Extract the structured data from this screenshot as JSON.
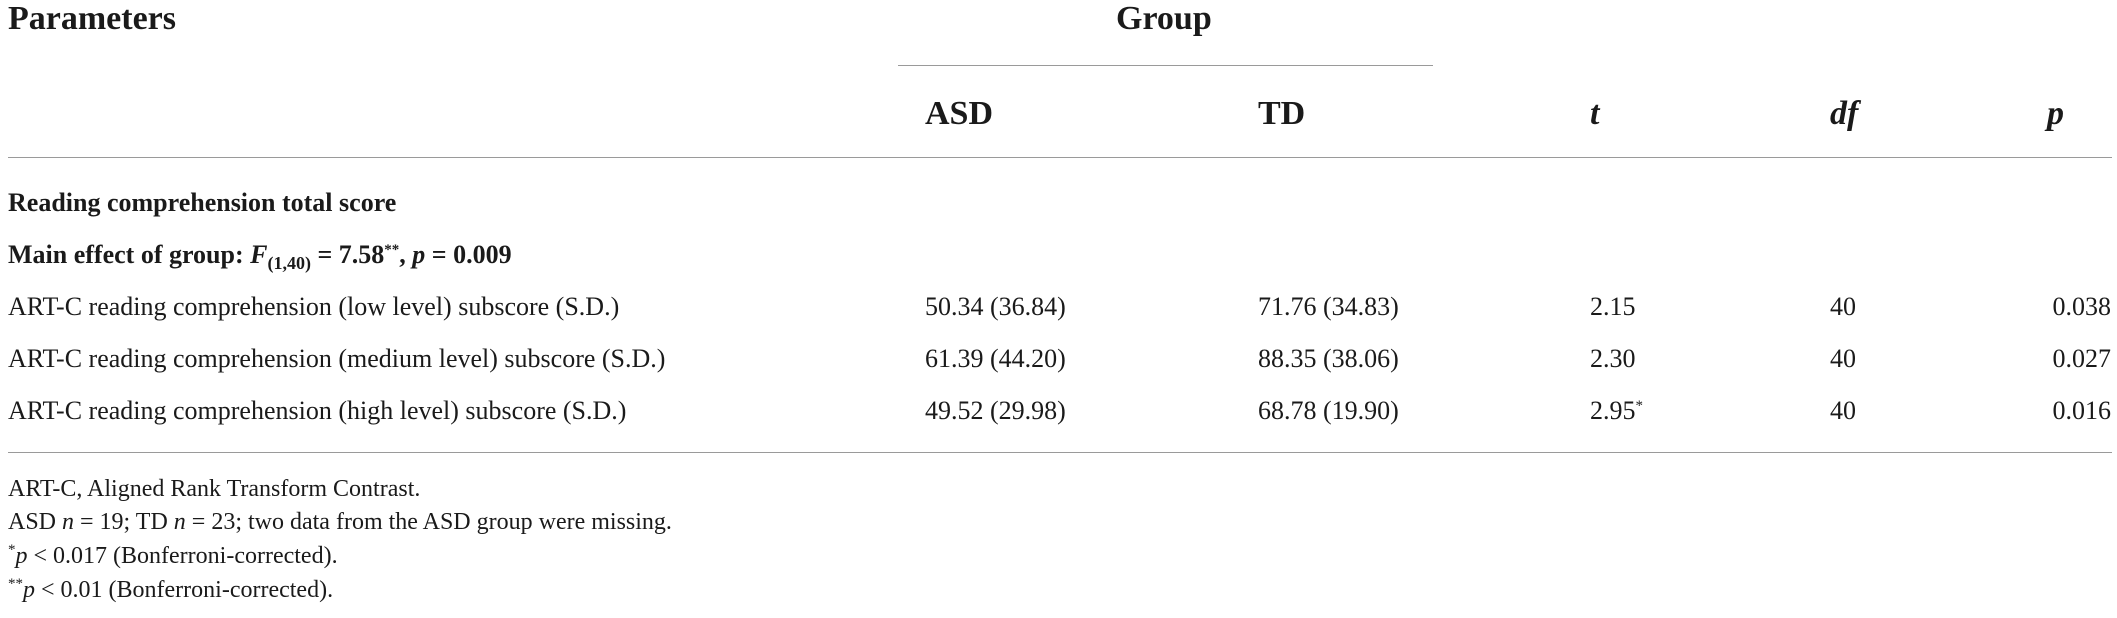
{
  "table": {
    "headers": {
      "parameters": "Parameters",
      "group": "Group",
      "asd": "ASD",
      "td": "TD",
      "t": "t",
      "df": "df",
      "p": "p"
    },
    "section_title": "Reading comprehension total score",
    "main_effect": {
      "label": "Main effect of group: ",
      "f": "F",
      "f_sub": "(1,40)",
      "f_value": " = 7.58",
      "f_stars": "**",
      "sep": ", ",
      "p": "p",
      "p_value": " = 0.009"
    },
    "rows": [
      {
        "param": "ART-C reading comprehension (low level) subscore (S.D.)",
        "asd": "50.34 (36.84)",
        "td": "71.76 (34.83)",
        "t": "2.15",
        "t_mark": "",
        "df": "40",
        "p": "0.038"
      },
      {
        "param": "ART-C reading comprehension (medium level) subscore (S.D.)",
        "asd": "61.39 (44.20)",
        "td": "88.35 (38.06)",
        "t": "2.30",
        "t_mark": "",
        "df": "40",
        "p": "0.027"
      },
      {
        "param": "ART-C reading comprehension (high level) subscore (S.D.)",
        "asd": "49.52 (29.98)",
        "td": "68.78 (19.90)",
        "t": "2.95",
        "t_mark": "*",
        "df": "40",
        "p": "0.016"
      }
    ]
  },
  "footnotes": {
    "abbrev": "ART-C, Aligned Rank Transform Contrast.",
    "sample_a": "ASD ",
    "sample_n1": "n",
    "sample_b": " = 19; TD ",
    "sample_n2": "n",
    "sample_c": " = 23; two data from the ASD group were missing.",
    "star1": "*",
    "star1_p": "p",
    "star1_text": " < 0.017 (Bonferroni-corrected).",
    "star2": "**",
    "star2_p": "p",
    "star2_text": " < 0.01 (Bonferroni-corrected)."
  }
}
